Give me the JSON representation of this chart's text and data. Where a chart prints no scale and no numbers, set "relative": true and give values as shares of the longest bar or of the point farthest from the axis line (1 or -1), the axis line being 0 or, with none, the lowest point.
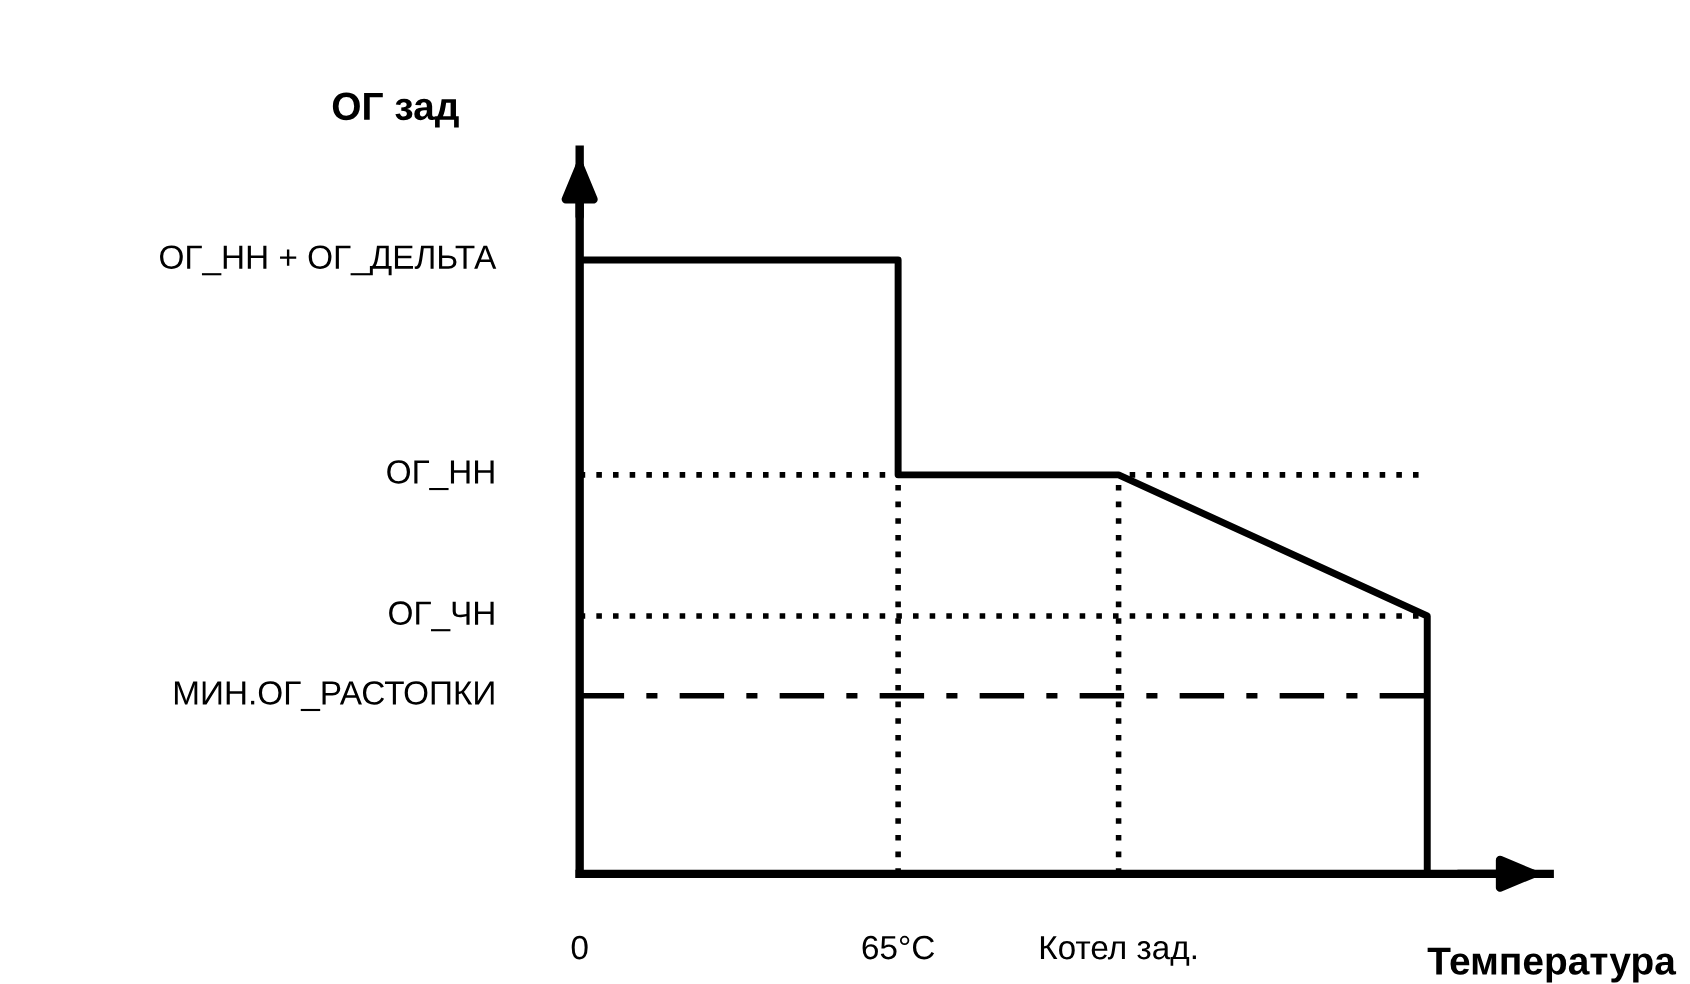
{
  "chart_data": {
    "type": "line",
    "relative": true,
    "ylabel": "ОГ зад",
    "xlabel": "Температура",
    "series": [
      {
        "color": "#000000",
        "x": [
          0,
          65,
          65,
          110,
          173,
          173
        ],
        "values": [
          1,
          1,
          0.65,
          0.65,
          0.42,
          0
        ]
      }
    ],
    "xlim": [
      0,
      198
    ],
    "xticks": [
      0,
      {
        "value": 65,
        "label": "65°C"
      },
      {
        "value": 110,
        "label": "Котел зад."
      }
    ],
    "ref_lines": [
      {
        "axis": "y",
        "value": 0.65,
        "label": "ОГ_НН",
        "line_style": "dotted",
        "color": "#000000"
      },
      {
        "axis": "y",
        "value": 0.42,
        "label": "ОГ_ЧН",
        "line_style": "dotted",
        "color": "#000000"
      },
      {
        "axis": "y",
        "value": 0.29,
        "label": "МИН.ОГ_РАСТОПКИ",
        "line_style": "dashdot",
        "color": "#000000"
      },
      {
        "axis": "x",
        "value": 65,
        "line_style": "dotted",
        "color": "#000000"
      },
      {
        "axis": "x",
        "value": 110,
        "line_style": "dotted",
        "color": "#000000"
      }
    ],
    "annotations": [
      {
        "text": "ОГ_НН + ОГ_ДЕЛЬТА",
        "x": 0,
        "y": 1
      }
    ],
    "grid": false,
    "legend": false,
    "marker": "none",
    "line_style": "solid"
  }
}
